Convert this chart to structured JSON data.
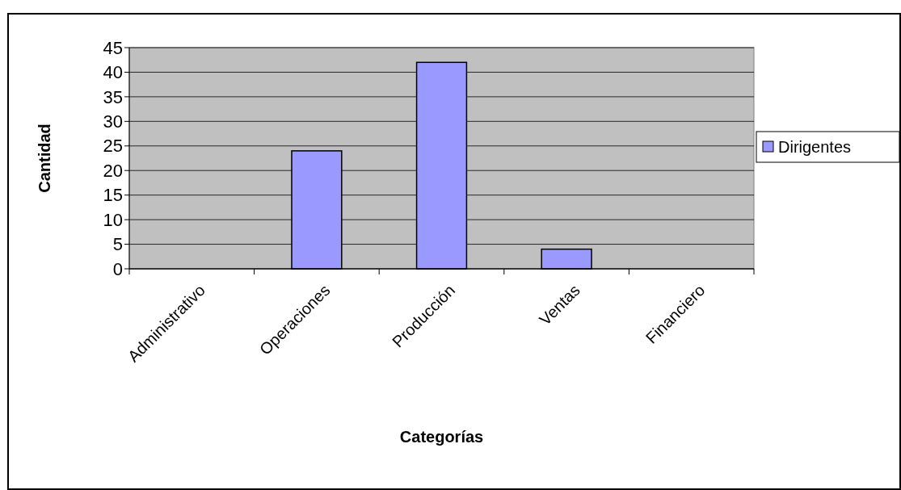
{
  "chart_data": {
    "type": "bar",
    "xlabel": "Categorías",
    "ylabel": "Cantidad",
    "categories": [
      "Administrativo",
      "Operaciones",
      "Producción",
      "Ventas",
      "Financiero"
    ],
    "series": [
      {
        "name": "Dirigentes",
        "color": "#9999ff",
        "values": [
          0,
          24,
          42,
          4,
          0
        ]
      }
    ],
    "ylim": [
      0,
      45
    ],
    "yticks": [
      0,
      5,
      10,
      15,
      20,
      25,
      30,
      35,
      40,
      45
    ],
    "grid": "y",
    "legend": "right"
  }
}
